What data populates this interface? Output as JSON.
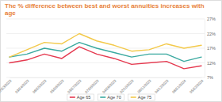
{
  "chart_data": {
    "type": "line",
    "title": "The % difference between best and worst annuities increases with age",
    "categories": [
      "07/03/2023",
      "03/04/2023",
      "08/05/2023",
      "05/06/2023",
      "03/07/2023",
      "07/08/2023",
      "04/09/2023",
      "02/10/2023",
      "06/11/2023",
      "04/12/2023",
      "08/01/2024",
      "05/02/2024"
    ],
    "series": [
      {
        "name": "Age 65",
        "color": "#e5394f",
        "values": [
          12,
          13,
          15,
          13.5,
          17.5,
          15,
          13.5,
          11.5,
          12,
          12.5,
          10,
          11
        ]
      },
      {
        "name": "Age 70",
        "color": "#3aa9a0",
        "values": [
          14,
          15,
          17,
          16,
          19,
          17,
          15.5,
          14,
          15,
          15,
          12.5,
          14
        ]
      },
      {
        "name": "Age 75",
        "color": "#f3c94a",
        "values": [
          14,
          16.5,
          19,
          18.5,
          22,
          19.5,
          18,
          16,
          16.5,
          18.5,
          17,
          18
        ]
      }
    ],
    "ylim": [
      7,
      27
    ],
    "yticks": [
      {
        "value": 7,
        "label": "7%"
      },
      {
        "value": 12,
        "label": "12%"
      },
      {
        "value": 17,
        "label": "17%"
      },
      {
        "value": 22,
        "label": "22%"
      },
      {
        "value": 27,
        "label": "27%"
      }
    ],
    "grid": true,
    "legend": "bottom"
  }
}
